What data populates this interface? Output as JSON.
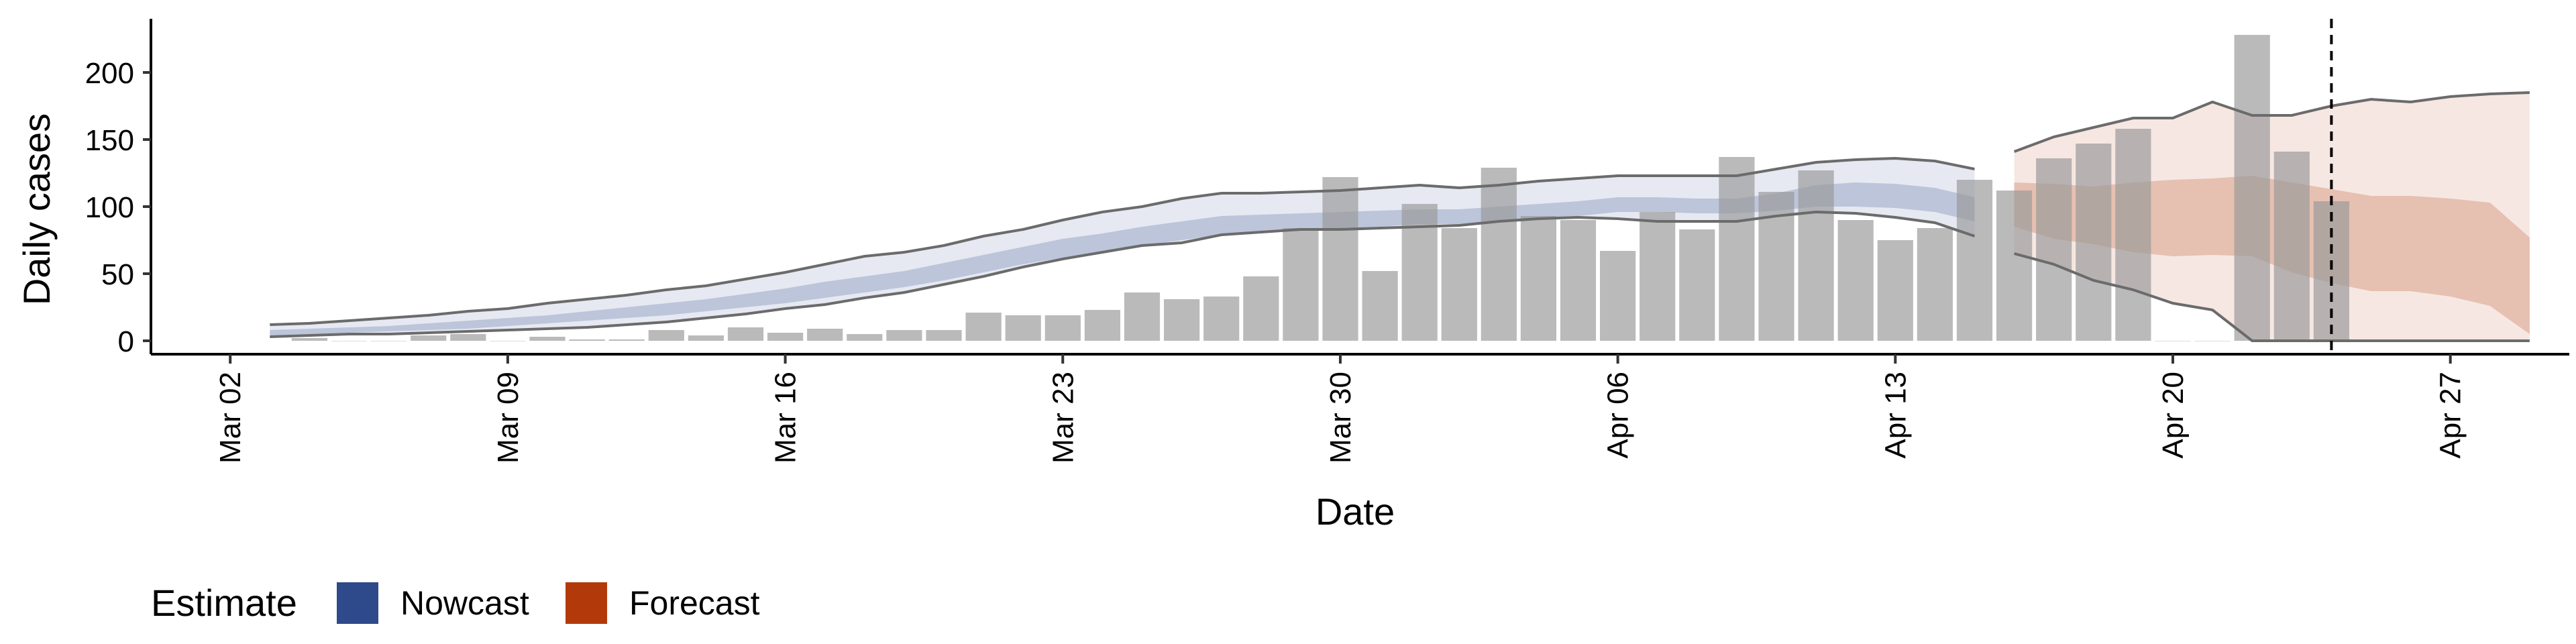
{
  "chart_data": {
    "type": "bar",
    "xlabel": "Date",
    "ylabel": "Daily cases",
    "ylim": [
      -10,
      240
    ],
    "x_ticks": [
      "Mar 02",
      "Mar 09",
      "Mar 16",
      "Mar 23",
      "Mar 30",
      "Apr 06",
      "Apr 13",
      "Apr 20",
      "Apr 27"
    ],
    "y_ticks": [
      0,
      50,
      100,
      150,
      200
    ],
    "grid": false,
    "x_start": "2020-02-29",
    "x_end": "2020-04-30",
    "forecast_start_date": "2020-04-16",
    "vline_date": "2020-04-24",
    "observed_cases": {
      "dates": [
        "2020-03-04",
        "2020-03-05",
        "2020-03-06",
        "2020-03-07",
        "2020-03-08",
        "2020-03-09",
        "2020-03-10",
        "2020-03-11",
        "2020-03-12",
        "2020-03-13",
        "2020-03-14",
        "2020-03-15",
        "2020-03-16",
        "2020-03-17",
        "2020-03-18",
        "2020-03-19",
        "2020-03-20",
        "2020-03-21",
        "2020-03-22",
        "2020-03-23",
        "2020-03-24",
        "2020-03-25",
        "2020-03-26",
        "2020-03-27",
        "2020-03-28",
        "2020-03-29",
        "2020-03-30",
        "2020-03-31",
        "2020-04-01",
        "2020-04-02",
        "2020-04-03",
        "2020-04-04",
        "2020-04-05",
        "2020-04-06",
        "2020-04-07",
        "2020-04-08",
        "2020-04-09",
        "2020-04-10",
        "2020-04-11",
        "2020-04-12",
        "2020-04-13",
        "2020-04-14",
        "2020-04-15",
        "2020-04-16",
        "2020-04-17",
        "2020-04-18",
        "2020-04-19",
        "2020-04-20",
        "2020-04-21",
        "2020-04-22",
        "2020-04-23",
        "2020-04-24"
      ],
      "values": [
        2,
        0,
        0,
        4,
        5,
        0,
        3,
        1,
        1,
        8,
        4,
        10,
        6,
        9,
        5,
        8,
        8,
        21,
        19,
        19,
        23,
        36,
        31,
        33,
        48,
        84,
        122,
        52,
        102,
        84,
        129,
        93,
        90,
        67,
        96,
        83,
        137,
        111,
        127,
        90,
        75,
        84,
        120,
        112,
        136,
        147,
        158,
        0,
        0,
        228,
        141,
        104
      ]
    },
    "series": [
      {
        "name": "Nowcast",
        "color": "#2F4A8A",
        "dates": [
          "2020-03-03",
          "2020-03-04",
          "2020-03-05",
          "2020-03-06",
          "2020-03-07",
          "2020-03-08",
          "2020-03-09",
          "2020-03-10",
          "2020-03-11",
          "2020-03-12",
          "2020-03-13",
          "2020-03-14",
          "2020-03-15",
          "2020-03-16",
          "2020-03-17",
          "2020-03-18",
          "2020-03-19",
          "2020-03-20",
          "2020-03-21",
          "2020-03-22",
          "2020-03-23",
          "2020-03-24",
          "2020-03-25",
          "2020-03-26",
          "2020-03-27",
          "2020-03-28",
          "2020-03-29",
          "2020-03-30",
          "2020-03-31",
          "2020-04-01",
          "2020-04-02",
          "2020-04-03",
          "2020-04-04",
          "2020-04-05",
          "2020-04-06",
          "2020-04-07",
          "2020-04-08",
          "2020-04-09",
          "2020-04-10",
          "2020-04-11",
          "2020-04-12",
          "2020-04-13",
          "2020-04-14",
          "2020-04-15"
        ],
        "upper90": [
          12,
          13,
          15,
          17,
          19,
          22,
          24,
          28,
          31,
          34,
          38,
          41,
          46,
          51,
          57,
          63,
          66,
          71,
          78,
          83,
          90,
          96,
          100,
          106,
          110,
          110,
          111,
          112,
          114,
          116,
          114,
          116,
          119,
          121,
          123,
          123,
          123,
          123,
          128,
          133,
          135,
          136,
          134,
          128
        ],
        "upper50": [
          8,
          9,
          10,
          11,
          13,
          15,
          17,
          19,
          22,
          25,
          28,
          31,
          35,
          39,
          44,
          48,
          52,
          58,
          64,
          70,
          76,
          80,
          85,
          89,
          93,
          94,
          95,
          96,
          97,
          98,
          98,
          100,
          102,
          104,
          107,
          107,
          106,
          106,
          110,
          116,
          118,
          117,
          114,
          107
        ],
        "lower50": [
          4,
          5,
          6,
          7,
          8,
          9,
          11,
          13,
          15,
          17,
          19,
          22,
          25,
          28,
          32,
          36,
          40,
          45,
          51,
          57,
          62,
          67,
          71,
          75,
          79,
          81,
          82,
          84,
          85,
          87,
          87,
          89,
          91,
          93,
          96,
          96,
          95,
          95,
          97,
          100,
          100,
          99,
          96,
          89
        ],
        "lower90": [
          3,
          4,
          5,
          5,
          6,
          7,
          8,
          9,
          10,
          12,
          14,
          17,
          20,
          24,
          27,
          32,
          36,
          42,
          48,
          55,
          61,
          66,
          71,
          73,
          79,
          81,
          83,
          83,
          84,
          85,
          86,
          89,
          91,
          92,
          91,
          89,
          89,
          89,
          93,
          96,
          95,
          92,
          88,
          78
        ]
      },
      {
        "name": "Forecast",
        "color": "#B23A0A",
        "dates": [
          "2020-04-16",
          "2020-04-17",
          "2020-04-18",
          "2020-04-19",
          "2020-04-20",
          "2020-04-21",
          "2020-04-22",
          "2020-04-23",
          "2020-04-24",
          "2020-04-25",
          "2020-04-26",
          "2020-04-27",
          "2020-04-28",
          "2020-04-29"
        ],
        "upper90": [
          141,
          152,
          159,
          166,
          166,
          178,
          168,
          168,
          175,
          180,
          178,
          182,
          184,
          185
        ],
        "upper50": [
          118,
          117,
          115,
          118,
          120,
          121,
          123,
          118,
          113,
          108,
          108,
          106,
          103,
          77
        ],
        "lower50": [
          85,
          76,
          72,
          66,
          63,
          64,
          63,
          51,
          43,
          37,
          37,
          33,
          26,
          5
        ],
        "lower90": [
          65,
          57,
          45,
          38,
          28,
          23,
          0,
          0,
          0,
          0,
          0,
          0,
          0,
          0
        ]
      }
    ],
    "legend_title": "Estimate",
    "legend_position": "bottom-left"
  }
}
